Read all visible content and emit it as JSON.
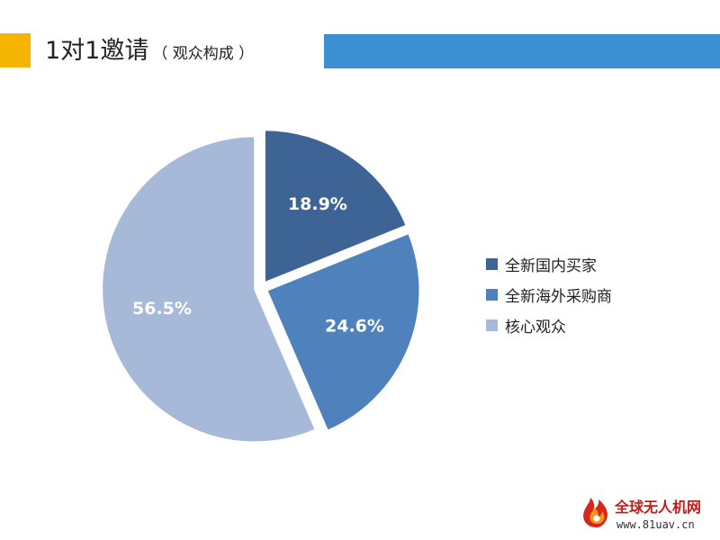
{
  "header": {
    "title_main": "1对1邀请",
    "title_sub": "（ 观众构成 ）",
    "accent_color": "#f5b400",
    "bar_color": "#3b8fd3"
  },
  "chart_data": {
    "type": "pie",
    "title": "1对1邀请（ 观众构成 ）",
    "slices": [
      {
        "label": "全新国内买家",
        "value": 18.9,
        "display": "18.9%",
        "color": "#3e6496"
      },
      {
        "label": "全新海外采购商",
        "value": 24.6,
        "display": "24.6%",
        "color": "#4f81bd"
      },
      {
        "label": "核心观众",
        "value": 56.5,
        "display": "56.5%",
        "color": "#a7b9d9"
      }
    ],
    "legend_position": "right",
    "start_angle_deg": 0,
    "direction": "clockwise",
    "exploded": true
  },
  "watermark": {
    "name": "全球无人机网",
    "url": "www.81uav.cn",
    "icon": "flame-logo-icon"
  }
}
